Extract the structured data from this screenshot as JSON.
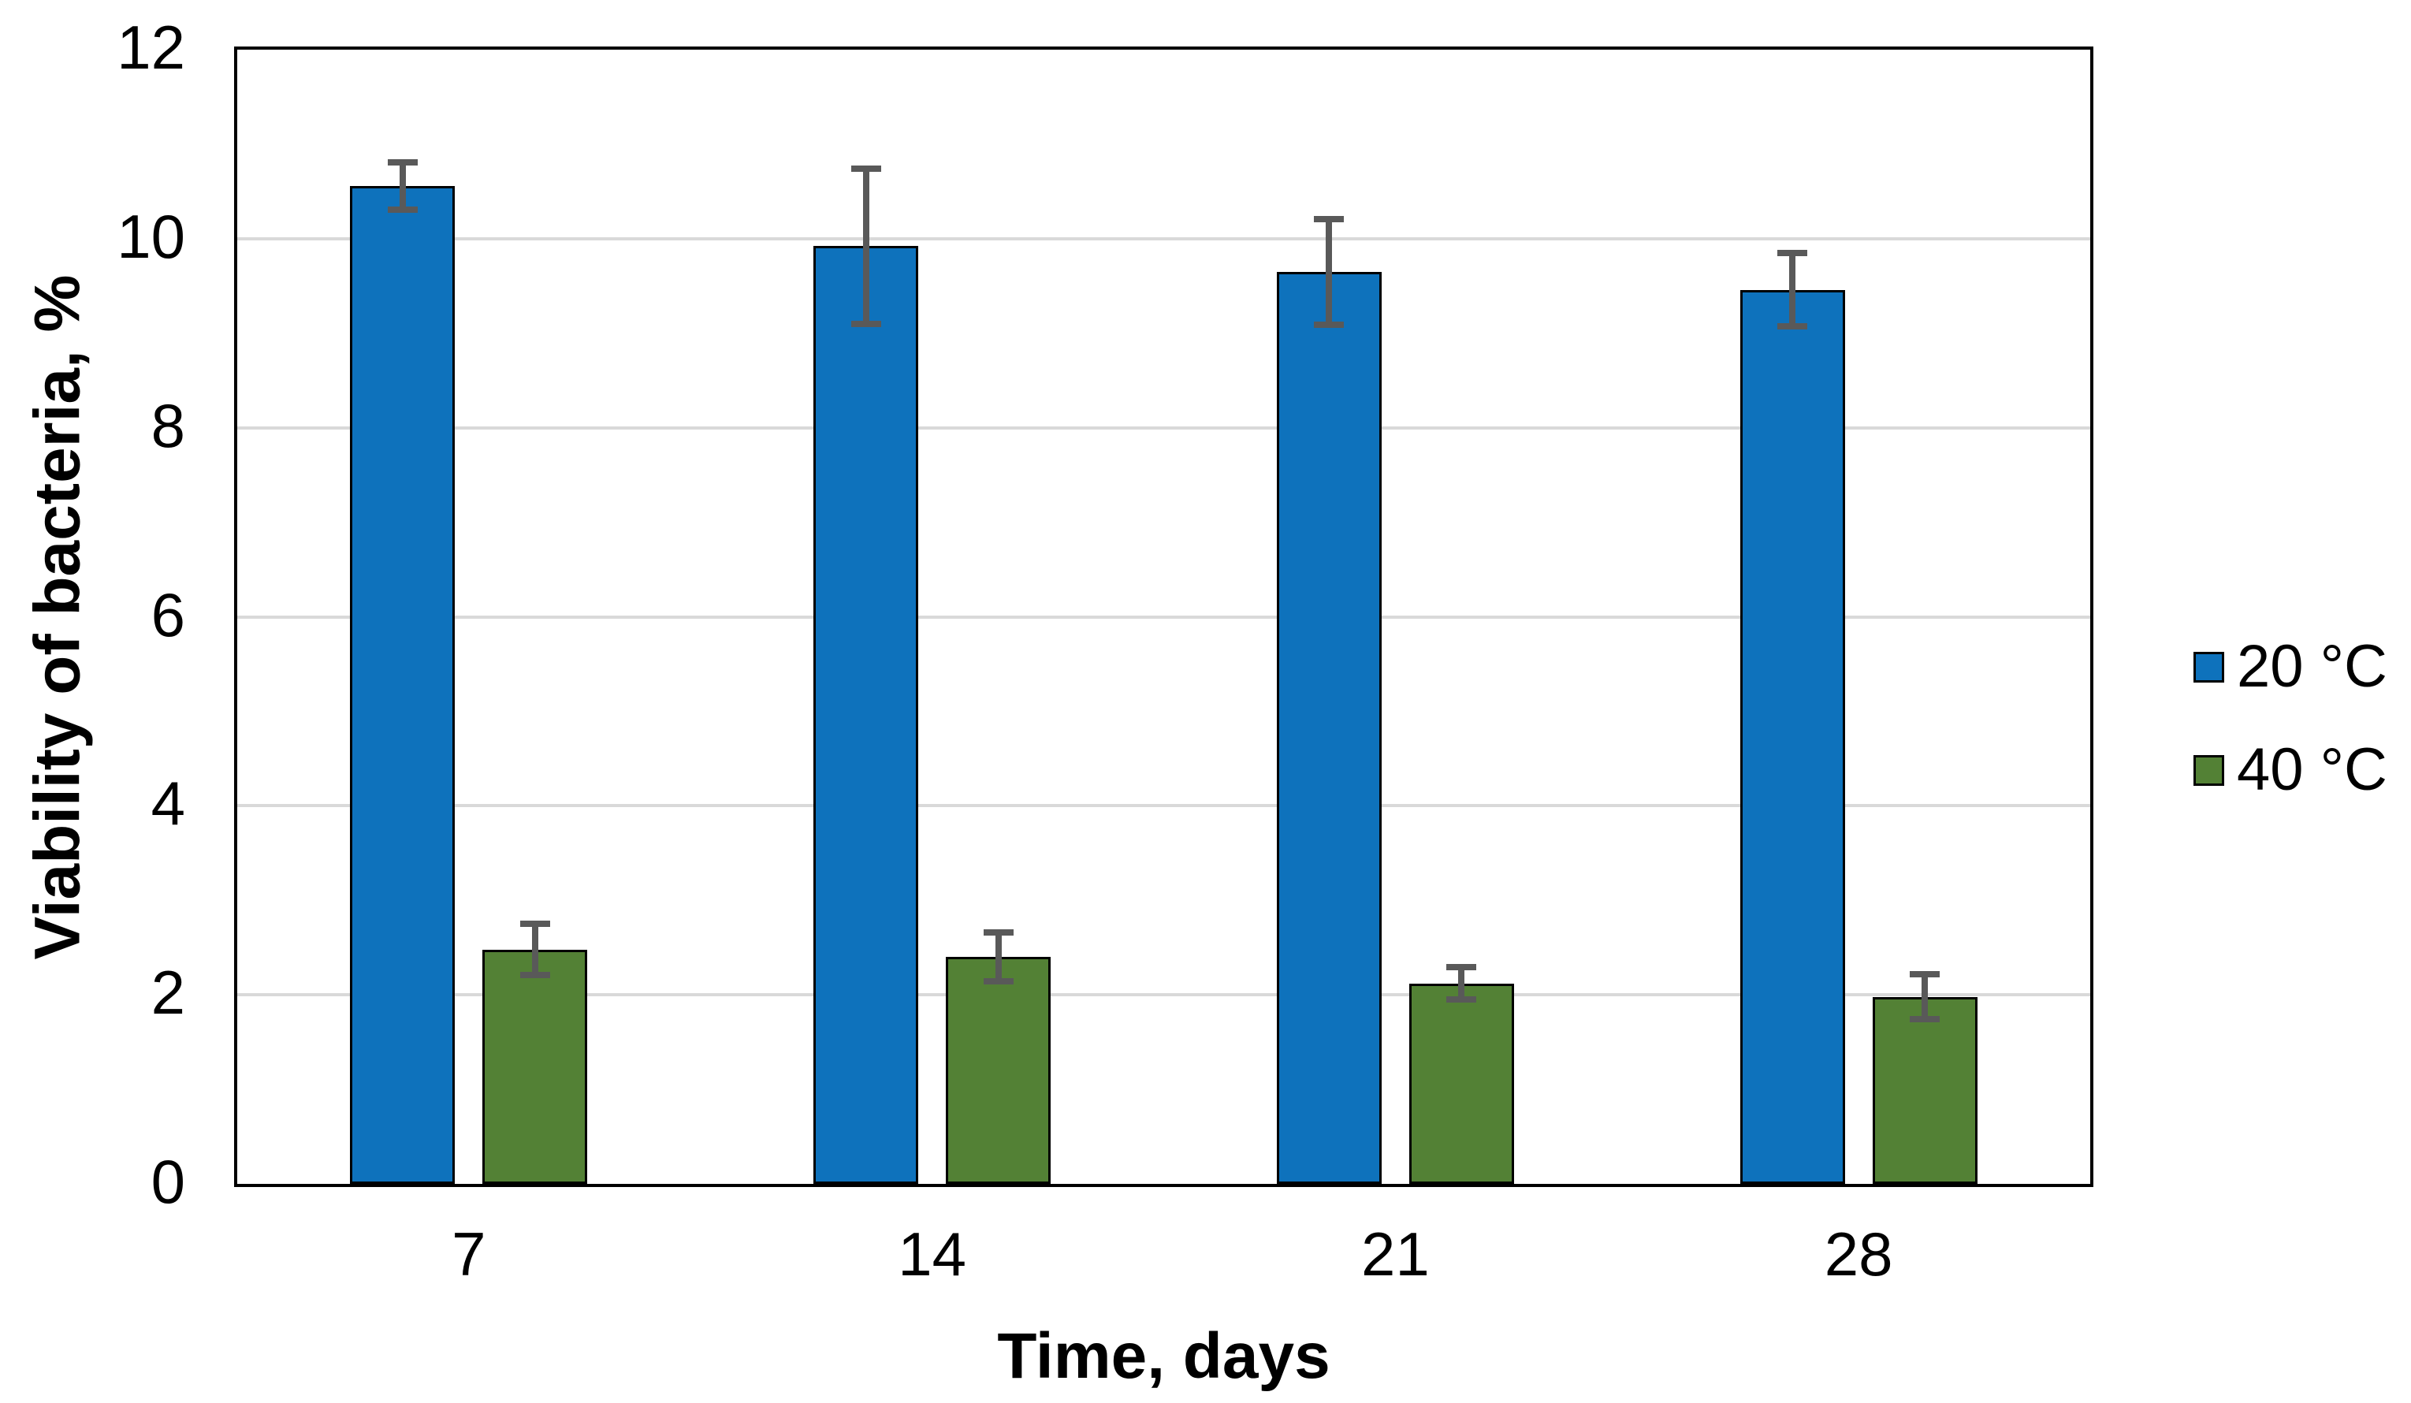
{
  "chart_data": {
    "type": "bar",
    "title": "",
    "categories": [
      "7",
      "14",
      "21",
      "28"
    ],
    "series": [
      {
        "name": "20 °C",
        "color": "#0E72BC",
        "values": [
          10.56,
          9.92,
          9.65,
          9.46
        ],
        "errors": [
          0.25,
          0.82,
          0.56,
          0.39
        ]
      },
      {
        "name": "40 °C",
        "color": "#538135",
        "values": [
          2.48,
          2.4,
          2.12,
          1.98
        ],
        "errors": [
          0.27,
          0.26,
          0.17,
          0.24
        ]
      }
    ],
    "xlabel": "Time, days",
    "ylabel": "Viability of bacteria, %",
    "ylim": [
      0,
      12
    ],
    "yticks": [
      0,
      2,
      4,
      6,
      8,
      10,
      12
    ],
    "grid": true,
    "legend_position": "right",
    "colors": {
      "gridline": "#D9D9D9",
      "axis_border": "#000000",
      "bar_outline": "#000000",
      "error_bar": "#595959",
      "background": "#FFFFFF",
      "text": "#000000"
    }
  }
}
